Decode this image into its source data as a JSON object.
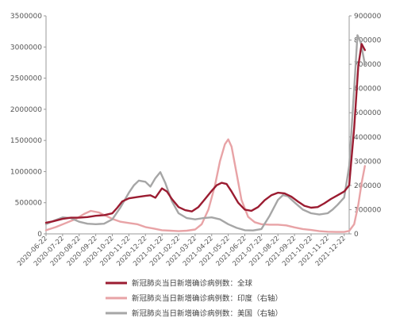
{
  "chart_data": {
    "type": "line",
    "title": "",
    "xlabel": "",
    "ylabel": "",
    "categories": [
      "2020-06-22",
      "2020-07-22",
      "2020-08-22",
      "2020-09-22",
      "2020-10-22",
      "2020-11-22",
      "2020-12-22",
      "2021-01-22",
      "2021-02-22",
      "2021-03-22",
      "2021-04-22",
      "2021-05-22",
      "2021-06-22",
      "2021-07-22",
      "2021-08-22",
      "2021-09-22",
      "2021-10-22",
      "2021-11-22",
      "2021-12-22"
    ],
    "y_left": {
      "ylim": [
        0,
        3500000
      ],
      "ticks": [
        "0",
        "500000",
        "1000000",
        "1500000",
        "2000000",
        "2500000",
        "3000000",
        "3500000"
      ]
    },
    "y_right": {
      "ylim": [
        0,
        900000
      ],
      "ticks": [
        "0",
        "100000",
        "200000",
        "300000",
        "400000",
        "500000",
        "600000",
        "700000",
        "800000",
        "900000"
      ]
    },
    "legend_placement": "bottom",
    "series": [
      {
        "name": "新冠肺炎当日新增确诊病例数：全球",
        "axis": "left",
        "color": "#9b1c31",
        "points": [
          [
            0.0,
            180000
          ],
          [
            0.4,
            200000
          ],
          [
            1.0,
            240000
          ],
          [
            1.5,
            260000
          ],
          [
            2.0,
            260000
          ],
          [
            2.5,
            270000
          ],
          [
            3.0,
            290000
          ],
          [
            3.5,
            300000
          ],
          [
            4.0,
            330000
          ],
          [
            4.3,
            420000
          ],
          [
            4.6,
            520000
          ],
          [
            5.0,
            570000
          ],
          [
            5.5,
            590000
          ],
          [
            6.0,
            610000
          ],
          [
            6.3,
            620000
          ],
          [
            6.6,
            580000
          ],
          [
            7.0,
            730000
          ],
          [
            7.3,
            680000
          ],
          [
            7.6,
            560000
          ],
          [
            8.0,
            430000
          ],
          [
            8.4,
            380000
          ],
          [
            8.8,
            360000
          ],
          [
            9.2,
            430000
          ],
          [
            9.6,
            560000
          ],
          [
            10.0,
            690000
          ],
          [
            10.3,
            780000
          ],
          [
            10.6,
            820000
          ],
          [
            10.9,
            800000
          ],
          [
            11.2,
            680000
          ],
          [
            11.6,
            500000
          ],
          [
            12.0,
            390000
          ],
          [
            12.4,
            370000
          ],
          [
            12.8,
            430000
          ],
          [
            13.2,
            540000
          ],
          [
            13.6,
            620000
          ],
          [
            14.0,
            660000
          ],
          [
            14.4,
            650000
          ],
          [
            14.8,
            600000
          ],
          [
            15.2,
            520000
          ],
          [
            15.6,
            450000
          ],
          [
            16.0,
            420000
          ],
          [
            16.4,
            430000
          ],
          [
            16.8,
            490000
          ],
          [
            17.2,
            560000
          ],
          [
            17.6,
            620000
          ],
          [
            18.0,
            680000
          ],
          [
            18.3,
            780000
          ],
          [
            18.6,
            1700000
          ],
          [
            18.85,
            2700000
          ],
          [
            19.05,
            3050000
          ],
          [
            19.25,
            2950000
          ]
        ]
      },
      {
        "name": "新冠肺炎当日新增确诊病例数：印度（右轴）",
        "axis": "right",
        "color": "#e8a3a6",
        "points": [
          [
            0.0,
            15000
          ],
          [
            0.6,
            28000
          ],
          [
            1.2,
            45000
          ],
          [
            1.8,
            62000
          ],
          [
            2.3,
            82000
          ],
          [
            2.7,
            95000
          ],
          [
            3.2,
            88000
          ],
          [
            3.6,
            75000
          ],
          [
            4.0,
            62000
          ],
          [
            4.5,
            50000
          ],
          [
            5.0,
            45000
          ],
          [
            5.5,
            40000
          ],
          [
            6.0,
            28000
          ],
          [
            6.5,
            22000
          ],
          [
            7.0,
            15000
          ],
          [
            7.5,
            13000
          ],
          [
            8.0,
            11000
          ],
          [
            8.5,
            13000
          ],
          [
            9.0,
            18000
          ],
          [
            9.4,
            40000
          ],
          [
            9.8,
            100000
          ],
          [
            10.2,
            200000
          ],
          [
            10.5,
            300000
          ],
          [
            10.8,
            370000
          ],
          [
            11.0,
            390000
          ],
          [
            11.2,
            360000
          ],
          [
            11.5,
            250000
          ],
          [
            11.8,
            140000
          ],
          [
            12.2,
            70000
          ],
          [
            12.6,
            48000
          ],
          [
            13.0,
            40000
          ],
          [
            13.5,
            38000
          ],
          [
            14.0,
            38000
          ],
          [
            14.5,
            35000
          ],
          [
            15.0,
            27000
          ],
          [
            15.5,
            20000
          ],
          [
            16.0,
            16000
          ],
          [
            16.5,
            11000
          ],
          [
            17.0,
            9000
          ],
          [
            17.5,
            8000
          ],
          [
            18.0,
            8000
          ],
          [
            18.3,
            12000
          ],
          [
            18.6,
            40000
          ],
          [
            18.85,
            120000
          ],
          [
            19.05,
            210000
          ],
          [
            19.25,
            280000
          ]
        ]
      },
      {
        "name": "新冠肺炎当日新增确诊病例数：美国（右轴）",
        "axis": "right",
        "color": "#a6a6a6",
        "points": [
          [
            0.0,
            40000
          ],
          [
            0.5,
            55000
          ],
          [
            1.0,
            68000
          ],
          [
            1.5,
            65000
          ],
          [
            2.0,
            50000
          ],
          [
            2.5,
            42000
          ],
          [
            3.0,
            40000
          ],
          [
            3.5,
            42000
          ],
          [
            4.0,
            60000
          ],
          [
            4.5,
            110000
          ],
          [
            5.0,
            170000
          ],
          [
            5.3,
            200000
          ],
          [
            5.6,
            220000
          ],
          [
            6.0,
            215000
          ],
          [
            6.3,
            195000
          ],
          [
            6.6,
            230000
          ],
          [
            6.9,
            255000
          ],
          [
            7.2,
            210000
          ],
          [
            7.6,
            135000
          ],
          [
            8.0,
            85000
          ],
          [
            8.5,
            65000
          ],
          [
            9.0,
            60000
          ],
          [
            9.5,
            65000
          ],
          [
            10.0,
            68000
          ],
          [
            10.5,
            60000
          ],
          [
            11.0,
            40000
          ],
          [
            11.5,
            25000
          ],
          [
            12.0,
            15000
          ],
          [
            12.5,
            14000
          ],
          [
            13.0,
            20000
          ],
          [
            13.5,
            75000
          ],
          [
            14.0,
            140000
          ],
          [
            14.3,
            160000
          ],
          [
            14.6,
            155000
          ],
          [
            15.0,
            130000
          ],
          [
            15.5,
            100000
          ],
          [
            16.0,
            85000
          ],
          [
            16.5,
            80000
          ],
          [
            17.0,
            85000
          ],
          [
            17.3,
            100000
          ],
          [
            17.6,
            120000
          ],
          [
            18.0,
            150000
          ],
          [
            18.3,
            280000
          ],
          [
            18.6,
            600000
          ],
          [
            18.8,
            820000
          ],
          [
            19.0,
            790000
          ],
          [
            19.25,
            700000
          ]
        ]
      }
    ]
  }
}
